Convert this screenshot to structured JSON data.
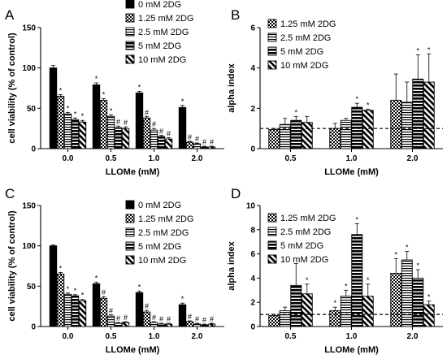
{
  "figure": {
    "panels": [
      "A",
      "B",
      "C",
      "D"
    ]
  },
  "chart_data": [
    {
      "panel": "A",
      "type": "bar",
      "xlabel": "LLOMe (mM)",
      "ylabel": "cell viability (% of control)",
      "categories": [
        "0.0",
        "0.5",
        "1.0",
        "2.0"
      ],
      "ylim": [
        0,
        150
      ],
      "yticks": [
        0,
        50,
        100,
        150
      ],
      "legend": "top-right",
      "series": [
        {
          "name": "0 mM 2DG",
          "pattern": "solid",
          "values": [
            100,
            79,
            69,
            51
          ],
          "err": [
            3,
            2.5,
            2,
            2.5
          ],
          "annot": [
            "",
            "*",
            "*",
            "*"
          ]
        },
        {
          "name": "1.25 mM 2DG",
          "pattern": "checker",
          "values": [
            65,
            60,
            38,
            8
          ],
          "err": [
            2,
            2,
            2,
            1
          ],
          "annot": [
            "*",
            "*",
            "#",
            "#"
          ]
        },
        {
          "name": "2.5 mM 2DG",
          "pattern": "hlines",
          "values": [
            43,
            40,
            23,
            6
          ],
          "err": [
            2,
            2,
            2,
            1
          ],
          "annot": [
            "*",
            "*",
            "#",
            "#"
          ]
        },
        {
          "name": "5 mM 2DG",
          "pattern": "thick",
          "values": [
            36,
            26,
            15,
            2
          ],
          "err": [
            2,
            2,
            1.5,
            1
          ],
          "annot": [
            "*",
            "#",
            "#",
            "#"
          ]
        },
        {
          "name": "10 mM 2DG",
          "pattern": "diag",
          "values": [
            33,
            25,
            12,
            2
          ],
          "err": [
            2,
            2,
            1.5,
            1
          ],
          "annot": [
            "*",
            "#",
            "#",
            "#"
          ]
        }
      ]
    },
    {
      "panel": "B",
      "type": "bar",
      "xlabel": "LLOMe (mM)",
      "ylabel": "alpha index",
      "categories": [
        "0.5",
        "1.0",
        "2.0"
      ],
      "ylim": [
        0,
        6
      ],
      "yticks": [
        0,
        2,
        4,
        6
      ],
      "reference_line": 1,
      "legend": "top-left",
      "series": [
        {
          "name": "1.25 mM 2DG",
          "pattern": "checker",
          "values": [
            0.95,
            1.0,
            2.4
          ],
          "err": [
            0.05,
            0.25,
            1.3
          ],
          "annot": [
            "",
            "",
            ""
          ]
        },
        {
          "name": "2.5 mM 2DG",
          "pattern": "hlines",
          "values": [
            1.2,
            1.4,
            2.3
          ],
          "err": [
            0.3,
            0.1,
            1.0
          ],
          "annot": [
            "",
            "",
            ""
          ]
        },
        {
          "name": "5 mM 2DG",
          "pattern": "thick",
          "values": [
            1.4,
            2.05,
            3.45
          ],
          "err": [
            0.2,
            0.2,
            1.2
          ],
          "annot": [
            "*",
            "*",
            "*"
          ]
        },
        {
          "name": "10 mM 2DG",
          "pattern": "diag",
          "values": [
            1.3,
            1.9,
            3.3
          ],
          "err": [
            0.3,
            0.05,
            1.4
          ],
          "annot": [
            "",
            "*",
            "*"
          ]
        }
      ]
    },
    {
      "panel": "C",
      "type": "bar",
      "xlabel": "LLOMe (mM)",
      "ylabel": "cell viability (% of control)",
      "categories": [
        "0.0",
        "0.5",
        "1.0",
        "2.0"
      ],
      "ylim": [
        0,
        150
      ],
      "yticks": [
        0,
        50,
        100,
        150
      ],
      "legend": "top-right",
      "series": [
        {
          "name": "0 mM 2DG",
          "pattern": "solid",
          "values": [
            100,
            53,
            42,
            27
          ],
          "err": [
            1,
            2,
            2,
            2
          ],
          "annot": [
            "",
            "*",
            "*",
            "*"
          ]
        },
        {
          "name": "1.25 mM 2DG",
          "pattern": "checker",
          "values": [
            65,
            35,
            18,
            6
          ],
          "err": [
            2,
            2,
            2,
            1
          ],
          "annot": [
            "*",
            "#",
            "#",
            "#"
          ]
        },
        {
          "name": "2.5 mM 2DG",
          "pattern": "hlines",
          "values": [
            40,
            13,
            5,
            3
          ],
          "err": [
            1.5,
            1.5,
            1,
            1
          ],
          "annot": [
            "*",
            "#",
            "#",
            "#"
          ]
        },
        {
          "name": "5 mM 2DG",
          "pattern": "thick",
          "values": [
            38,
            4,
            3,
            2
          ],
          "err": [
            1.5,
            1,
            1,
            1
          ],
          "annot": [
            "*",
            "#",
            "#",
            "#"
          ]
        },
        {
          "name": "10 mM 2DG",
          "pattern": "diag",
          "values": [
            32,
            5,
            3,
            3
          ],
          "err": [
            1.5,
            1,
            1,
            1
          ],
          "annot": [
            "*",
            "#",
            "#",
            "#"
          ]
        }
      ]
    },
    {
      "panel": "D",
      "type": "bar",
      "xlabel": "LLOMe (mM)",
      "ylabel": "alpha index",
      "categories": [
        "0.5",
        "1.0",
        "2.0"
      ],
      "ylim": [
        0,
        10
      ],
      "yticks": [
        0,
        2,
        4,
        6,
        8,
        10
      ],
      "reference_line": 1,
      "legend": "top-left",
      "series": [
        {
          "name": "1.25 mM 2DG",
          "pattern": "checker",
          "values": [
            0.9,
            1.3,
            4.4
          ],
          "err": [
            0.1,
            0.3,
            1.2
          ],
          "annot": [
            "",
            "*",
            "*"
          ]
        },
        {
          "name": "2.5 mM 2DG",
          "pattern": "hlines",
          "values": [
            1.3,
            2.5,
            5.5
          ],
          "err": [
            0.3,
            0.5,
            0.7
          ],
          "annot": [
            "",
            "*",
            "*"
          ]
        },
        {
          "name": "5 mM 2DG",
          "pattern": "thick",
          "values": [
            3.4,
            7.6,
            4.0
          ],
          "err": [
            1.8,
            0.9,
            0.7
          ],
          "annot": [
            "",
            "*",
            "*"
          ]
        },
        {
          "name": "10 mM 2DG",
          "pattern": "diag",
          "values": [
            2.7,
            2.5,
            1.8
          ],
          "err": [
            0.8,
            1.0,
            0.3
          ],
          "annot": [
            "*",
            "*",
            "*"
          ]
        }
      ]
    }
  ]
}
